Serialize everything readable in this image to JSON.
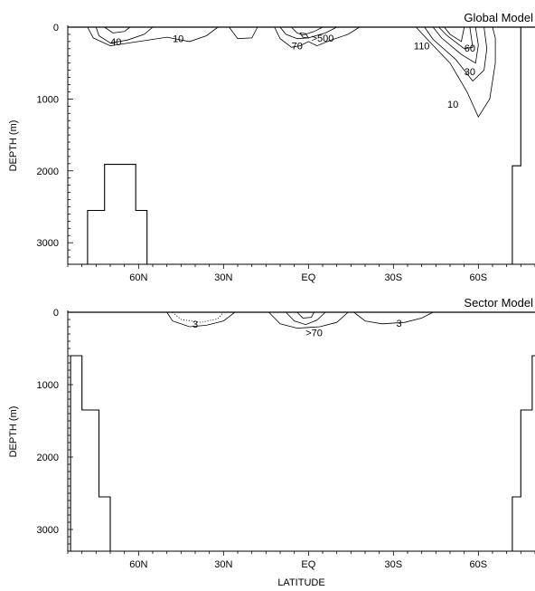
{
  "chart_data": [
    {
      "type": "contour",
      "title": "Global Model",
      "ylabel": "DEPTH (m)",
      "xlabel": "",
      "x_ticklabels": [
        {
          "lat": 60,
          "label": "60N"
        },
        {
          "lat": 30,
          "label": "30N"
        },
        {
          "lat": 0,
          "label": "EQ"
        },
        {
          "lat": -30,
          "label": "30S"
        },
        {
          "lat": -60,
          "label": "60S"
        }
      ],
      "y_ticklabels": [
        0,
        1000,
        2000,
        3000
      ],
      "xlim": [
        85,
        -80
      ],
      "ylim": [
        0,
        3300
      ],
      "contour_labels": [
        {
          "text": "40",
          "lat": 68,
          "depth": 200
        },
        {
          "text": "10",
          "lat": 46,
          "depth": 160
        },
        {
          "text": "70",
          "lat": 4,
          "depth": 260
        },
        {
          "text": ">500",
          "lat": -5,
          "depth": 150
        },
        {
          "text": "110",
          "lat": -40,
          "depth": 260
        },
        {
          "text": "60",
          "lat": -57,
          "depth": 290
        },
        {
          "text": "30",
          "lat": -57,
          "depth": 620
        },
        {
          "text": "10",
          "lat": -51,
          "depth": 1070
        }
      ],
      "topography": {
        "left": [
          [
            78,
            3300
          ],
          [
            78,
            2550
          ],
          [
            72,
            2550
          ],
          [
            72,
            1910
          ],
          [
            61,
            1910
          ],
          [
            61,
            2550
          ],
          [
            57,
            2550
          ],
          [
            57,
            3300
          ]
        ],
        "right": [
          [
            -72,
            3300
          ],
          [
            -72,
            1930
          ],
          [
            -75,
            1930
          ],
          [
            -75,
            0
          ]
        ]
      },
      "contours": [
        [
          [
            75,
            0
          ],
          [
            74,
            120
          ],
          [
            70,
            220
          ],
          [
            64,
            180
          ],
          [
            58,
            100
          ],
          [
            55,
            0
          ]
        ],
        [
          [
            78,
            0
          ],
          [
            76,
            150
          ],
          [
            70,
            260
          ],
          [
            60,
            200
          ],
          [
            50,
            140
          ],
          [
            42,
            200
          ],
          [
            36,
            120
          ],
          [
            32,
            0
          ]
        ],
        [
          [
            72,
            0
          ],
          [
            69,
            80
          ],
          [
            65,
            60
          ],
          [
            63,
            0
          ]
        ],
        [
          [
            28,
            0
          ],
          [
            25,
            160
          ],
          [
            20,
            150
          ],
          [
            18,
            0
          ]
        ],
        [
          [
            12,
            0
          ],
          [
            10,
            160
          ],
          [
            6,
            280
          ],
          [
            3,
            260
          ],
          [
            0,
            200
          ],
          [
            -3,
            260
          ],
          [
            -8,
            180
          ],
          [
            -14,
            100
          ],
          [
            -18,
            0
          ]
        ],
        [
          [
            10,
            0
          ],
          [
            8,
            100
          ],
          [
            4,
            160
          ],
          [
            0,
            150
          ],
          [
            -6,
            80
          ],
          [
            -10,
            0
          ]
        ],
        [
          [
            6,
            0
          ],
          [
            4,
            80
          ],
          [
            2,
            110
          ],
          [
            -2,
            60
          ],
          [
            -5,
            0
          ]
        ],
        [
          [
            3,
            80
          ],
          [
            2,
            140
          ],
          [
            0,
            150
          ],
          [
            1,
            90
          ],
          [
            3,
            80
          ]
        ],
        [
          [
            -38,
            0
          ],
          [
            -42,
            170
          ],
          [
            -50,
            500
          ],
          [
            -56,
            900
          ],
          [
            -60,
            1250
          ],
          [
            -64,
            1000
          ],
          [
            -66,
            500
          ],
          [
            -66,
            150
          ],
          [
            -65,
            0
          ]
        ],
        [
          [
            -41,
            0
          ],
          [
            -44,
            170
          ],
          [
            -52,
            450
          ],
          [
            -58,
            750
          ],
          [
            -62,
            600
          ],
          [
            -63,
            300
          ],
          [
            -62,
            0
          ]
        ],
        [
          [
            -44,
            0
          ],
          [
            -47,
            150
          ],
          [
            -54,
            380
          ],
          [
            -59,
            500
          ],
          [
            -60,
            250
          ],
          [
            -59,
            0
          ]
        ],
        [
          [
            -46,
            0
          ],
          [
            -49,
            120
          ],
          [
            -55,
            300
          ],
          [
            -58,
            280
          ],
          [
            -57,
            0
          ]
        ],
        [
          [
            -48,
            0
          ],
          [
            -50,
            100
          ],
          [
            -54,
            200
          ],
          [
            -55,
            0
          ]
        ]
      ]
    },
    {
      "type": "contour",
      "title": "Sector Model",
      "ylabel": "DEPTH (m)",
      "xlabel": "LATITUDE",
      "x_ticklabels": [
        {
          "lat": 60,
          "label": "60N"
        },
        {
          "lat": 30,
          "label": "30N"
        },
        {
          "lat": 0,
          "label": "EQ"
        },
        {
          "lat": -30,
          "label": "30S"
        },
        {
          "lat": -60,
          "label": "60S"
        }
      ],
      "y_ticklabels": [
        0,
        1000,
        2000,
        3000
      ],
      "xlim": [
        85,
        -80
      ],
      "ylim": [
        0,
        3300
      ],
      "contour_labels": [
        {
          "text": "3",
          "lat": 40,
          "depth": 160
        },
        {
          "text": ">70",
          "lat": -2,
          "depth": 280
        },
        {
          "text": "3",
          "lat": -32,
          "depth": 150
        }
      ],
      "topography": {
        "left": [
          [
            84,
            3300
          ],
          [
            84,
            600
          ],
          [
            80,
            600
          ],
          [
            80,
            1350
          ],
          [
            74,
            1350
          ],
          [
            74,
            2550
          ],
          [
            70,
            2550
          ],
          [
            70,
            3300
          ]
        ],
        "right": [
          [
            -72,
            3300
          ],
          [
            -72,
            2550
          ],
          [
            -75,
            2550
          ],
          [
            -75,
            1350
          ],
          [
            -79,
            1350
          ],
          [
            -79,
            600
          ],
          [
            -80,
            600
          ]
        ]
      },
      "contours": [
        [
          [
            50,
            0
          ],
          [
            48,
            120
          ],
          [
            42,
            200
          ],
          [
            36,
            180
          ],
          [
            30,
            120
          ],
          [
            26,
            0
          ]
        ],
        [
          [
            14,
            0
          ],
          [
            10,
            160
          ],
          [
            4,
            220
          ],
          [
            0,
            210
          ],
          [
            -4,
            200
          ],
          [
            -10,
            140
          ],
          [
            -14,
            0
          ]
        ],
        [
          [
            8,
            0
          ],
          [
            5,
            120
          ],
          [
            1,
            170
          ],
          [
            -3,
            110
          ],
          [
            -6,
            0
          ]
        ],
        [
          [
            4,
            0
          ],
          [
            2,
            80
          ],
          [
            -1,
            70
          ],
          [
            -2,
            0
          ]
        ],
        [
          [
            -16,
            0
          ],
          [
            -20,
            120
          ],
          [
            -26,
            160
          ],
          [
            -34,
            140
          ],
          [
            -40,
            80
          ],
          [
            -44,
            0
          ]
        ]
      ],
      "dotted_region": [
        [
          48,
          0
        ],
        [
          45,
          100
        ],
        [
          38,
          140
        ],
        [
          32,
          90
        ],
        [
          30,
          0
        ]
      ]
    }
  ]
}
